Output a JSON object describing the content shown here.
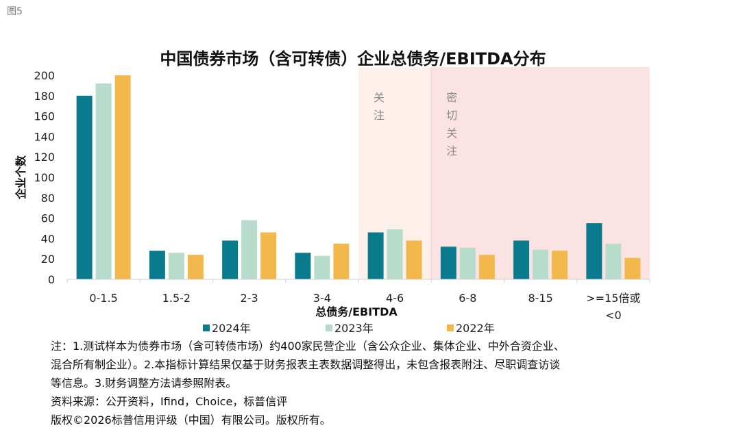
{
  "figure_label": "图5",
  "chart_data": {
    "type": "bar",
    "title": "中国债券市场（含可转债）企业总债务/EBITDA分布",
    "xlabel": "总债务/EBITDA",
    "ylabel": "企业个数",
    "ylim": [
      0,
      200
    ],
    "yticks": [
      0,
      20,
      40,
      60,
      80,
      100,
      120,
      140,
      160,
      180,
      200
    ],
    "categories": [
      "0-1.5",
      "1.5-2",
      "2-3",
      "3-4",
      "4-6",
      "6-8",
      "8-15",
      ">=15倍或<0"
    ],
    "series": [
      {
        "name": "2024年",
        "color": "#0a7b8c",
        "values": [
          180,
          28,
          38,
          26,
          46,
          32,
          38,
          55
        ]
      },
      {
        "name": "2023年",
        "color": "#b8dccb",
        "values": [
          192,
          26,
          58,
          23,
          49,
          31,
          29,
          35
        ]
      },
      {
        "name": "2022年",
        "color": "#f2b84b",
        "values": [
          200,
          24,
          46,
          35,
          38,
          24,
          28,
          21
        ]
      }
    ],
    "zones": [
      {
        "label": "关注",
        "from_category": 4,
        "to_category": 4,
        "color": "#fdf0ea"
      },
      {
        "label": "密切关注",
        "from_category": 5,
        "to_category": 7,
        "color": "#fbe3e3"
      }
    ],
    "legend_position": "bottom-center"
  },
  "notes": [
    "注：1.测试样本为债券市场（含可转债市场）约400家民营企业（含公众企业、集体企业、中外合资企业、",
    "混合所有制企业）。2.本指标计算结果仅基于财务报表主表数据调整得出，未包含报表附注、尽职调查访谈",
    "等信息。3.财务调整方法请参照附表。",
    "资料来源：公开资料，Ifind，Choice，标普信评",
    "版权©2026标普信用评级（中国）有限公司。版权所有。"
  ]
}
